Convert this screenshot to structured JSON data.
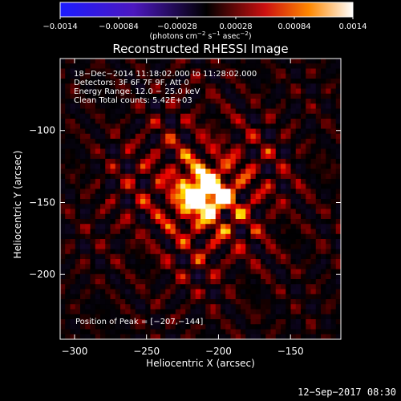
{
  "chart_data": {
    "type": "heatmap",
    "title": "Reconstructed RHESSI Image",
    "xlabel": "Heliocentric X (arcsec)",
    "ylabel": "Heliocentric Y (arcsec)",
    "xlim": [
      -310,
      -115
    ],
    "ylim": [
      -245,
      -50
    ],
    "xticks": [
      -300,
      -250,
      -200,
      -150
    ],
    "yticks": [
      -100,
      -150,
      -200
    ],
    "xtick_labels": [
      "−300",
      "−250",
      "−200",
      "−150"
    ],
    "ytick_labels": [
      "−100",
      "−150",
      "−200"
    ],
    "colorbar": {
      "range": [
        -0.0014,
        0.0014
      ],
      "ticks": [
        -0.0014,
        -0.00084,
        -0.00028,
        0.00028,
        0.00084,
        0.0014
      ],
      "tick_labels": [
        "−0.0014",
        "−0.00084",
        "−0.00028",
        "0.00028",
        "0.00084",
        "0.0014"
      ],
      "units_text": "(photons cm",
      "units_exp1": "−2",
      "units_mid": " s",
      "units_exp2": "−1",
      "units_end": " asec",
      "units_exp3": "−2",
      "units_close": ")"
    },
    "info": {
      "time": "18−Dec−2014 11:18:02.000 to 11:28:02.000",
      "detectors": "Detectors: 3F 6F 7F 9F, Att 0",
      "energy": "Energy Range: 12.0 − 25.0 keV",
      "clean": "Clean     Total counts: 5.42E+03"
    },
    "peak_position": [
      -207,
      -144
    ],
    "peak_label": "Position of Peak = [−207,−144]",
    "source": {
      "x": -210,
      "y": -144,
      "peak_value": 0.0014
    },
    "colors": {
      "negative": "#0000ff",
      "zero": "#000000",
      "positive_low": "#ff0000",
      "positive_high": "#ffff00",
      "max": "#ffffff"
    }
  },
  "footer": {
    "timestamp": "12−Sep−2017 08:30"
  }
}
